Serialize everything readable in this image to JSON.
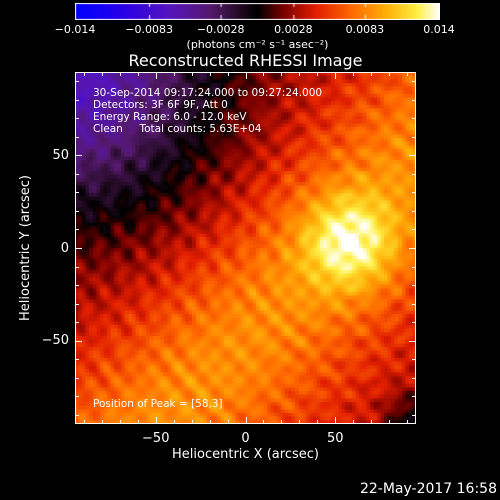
{
  "chart_data": {
    "type": "heatmap",
    "title": "Reconstructed RHESSI Image",
    "xlabel": "Heliocentric X (arcsec)",
    "ylabel": "Heliocentric Y (arcsec)",
    "xlim": [
      -95,
      95
    ],
    "ylim": [
      -95,
      95
    ],
    "xticks": [
      -50,
      0,
      50
    ],
    "xtick_labels": [
      "−50",
      "0",
      "50"
    ],
    "yticks": [
      -50,
      0,
      50
    ],
    "ytick_labels": [
      "−50",
      "0",
      "50"
    ],
    "colormap": "IDL rainbow/hot (blue-purple-red-orange-yellow-white)",
    "colorbar": {
      "range": [
        -0.014,
        0.014
      ],
      "tick_values": [
        -0.014,
        -0.0083,
        -0.0028,
        0.0028,
        0.0083,
        0.014
      ],
      "tick_labels": [
        "−0.014",
        "−0.0083",
        "−0.0028",
        "0.0028",
        "0.0083",
        "0.014"
      ],
      "unit_label": "(photons cm⁻² s⁻¹ asec⁻²)"
    },
    "annotations": [
      "30-Sep-2014 09:17:24.000 to 09:27:24.000",
      "Detectors: 3F 6F 9F, Att 0",
      "Energy Range: 6.0 - 12.0 keV",
      "Clean     Total counts: 5.63E+04"
    ],
    "peak_label": "Position of Peak = [58,3]",
    "peak_position": [
      58,
      3
    ],
    "footer_date": "22-May-2017 16:58"
  }
}
